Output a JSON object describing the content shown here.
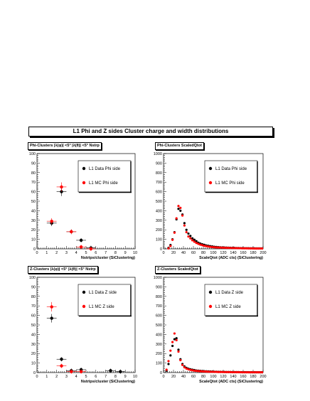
{
  "banner": "L1 Phi and Z sides Cluster charge and width distributions",
  "chart_data": [
    {
      "type": "scatter",
      "title": "Phi-Clusters |λ(φ)| <5° |λ(θ)| <5° Nstrp",
      "xlabel": "Nstrips/cluster (SiClustering)",
      "xlim": [
        0,
        10
      ],
      "ylim": [
        0,
        100
      ],
      "xticks": [
        "0",
        "1",
        "2",
        "3",
        "4",
        "5",
        "6",
        "7",
        "8",
        "9",
        "10"
      ],
      "yticks": [
        "0",
        "10",
        "20",
        "30",
        "40",
        "50",
        "60",
        "70",
        "80",
        "90",
        "100"
      ],
      "legend_position": "top-right",
      "series": [
        {
          "name": "L1 Data Phi side",
          "color": "#000000",
          "x": [
            1.5,
            2.5,
            3.5,
            4.5,
            5.5
          ],
          "y": [
            27,
            60,
            18,
            9,
            1
          ]
        },
        {
          "name": "L1 MC Phi side",
          "color": "#ff0000",
          "x": [
            1.5,
            2.5,
            3.5,
            4.5,
            5.5
          ],
          "y": [
            29,
            65,
            18,
            2,
            0
          ]
        }
      ]
    },
    {
      "type": "scatter",
      "title": "Phi-Clusters ScaledQtot",
      "xlabel": "ScaleQtot (ADC cts) (SiClustering)",
      "xlim": [
        0,
        200
      ],
      "ylim": [
        0,
        1000
      ],
      "xticks": [
        "0",
        "20",
        "40",
        "60",
        "80",
        "100",
        "120",
        "140",
        "160",
        "180",
        "200"
      ],
      "yticks": [
        "0",
        "100",
        "200",
        "300",
        "400",
        "500",
        "600",
        "700",
        "800",
        "900",
        "1000"
      ],
      "legend_position": "top-right",
      "series": [
        {
          "name": "L1 Data Phi side",
          "color": "#000000",
          "x": [
            10,
            14,
            18,
            22,
            26,
            30,
            34,
            38,
            42,
            46,
            50,
            54,
            58,
            62,
            66,
            70,
            74,
            78,
            82,
            86,
            90,
            94,
            98,
            102,
            106,
            110,
            114,
            118,
            122,
            126,
            130,
            134,
            138,
            142,
            146,
            150,
            154,
            158,
            162,
            166,
            170,
            174,
            178,
            182,
            186,
            190,
            194,
            198
          ],
          "y": [
            10,
            40,
            100,
            175,
            310,
            420,
            400,
            360,
            270,
            200,
            160,
            135,
            110,
            95,
            80,
            65,
            55,
            48,
            42,
            36,
            32,
            28,
            25,
            22,
            20,
            18,
            16,
            15,
            14,
            13,
            12,
            11,
            10,
            10,
            9,
            9,
            8,
            8,
            7,
            7,
            7,
            6,
            6,
            6,
            5,
            5,
            5,
            5
          ]
        },
        {
          "name": "L1 MC Phi side",
          "color": "#ff0000",
          "x": [
            10,
            14,
            18,
            22,
            26,
            30,
            34,
            38,
            42,
            46,
            50,
            54,
            58,
            62,
            66,
            70,
            74,
            78,
            82,
            86,
            90,
            94,
            98,
            102,
            106,
            110,
            114,
            118,
            122,
            126,
            130,
            134,
            138,
            142,
            146,
            150,
            154,
            158,
            162,
            166,
            170,
            174,
            178,
            182,
            186,
            190,
            194,
            198
          ],
          "y": [
            5,
            30,
            95,
            170,
            320,
            450,
            430,
            350,
            245,
            175,
            130,
            110,
            90,
            75,
            62,
            52,
            44,
            38,
            32,
            28,
            24,
            21,
            19,
            17,
            15,
            14,
            13,
            12,
            11,
            10,
            10,
            9,
            9,
            8,
            8,
            7,
            7,
            6,
            6,
            6,
            5,
            5,
            5,
            4,
            4,
            4,
            4,
            4
          ]
        }
      ]
    },
    {
      "type": "scatter",
      "title": "Z-Clusters |λ(φ)| <5° |λ(θ)| <5° Nstrp",
      "xlabel": "Nstrips/cluster (SiClustering)",
      "xlim": [
        0,
        10
      ],
      "ylim": [
        0,
        100
      ],
      "xticks": [
        "0",
        "1",
        "2",
        "3",
        "4",
        "5",
        "6",
        "7",
        "8",
        "9",
        "10"
      ],
      "yticks": [
        "0",
        "10",
        "20",
        "30",
        "40",
        "50",
        "60",
        "70",
        "80",
        "90",
        "100"
      ],
      "legend_position": "top-right",
      "series": [
        {
          "name": "L1 Data Z side",
          "color": "#000000",
          "x": [
            1.5,
            2.5,
            3.5,
            4.5,
            7.5,
            8.5
          ],
          "y": [
            57,
            14,
            2,
            3,
            2,
            1
          ]
        },
        {
          "name": "L1 MC Z side",
          "color": "#ff0000",
          "x": [
            1.5,
            2.5,
            3.5,
            4.5
          ],
          "y": [
            69,
            7,
            1,
            1
          ]
        }
      ]
    },
    {
      "type": "scatter",
      "title": "Z-Clusters ScaledQtot",
      "xlabel": "ScaleQtot (ADC cts) (SiClustering)",
      "xlim": [
        0,
        200
      ],
      "ylim": [
        0,
        1000
      ],
      "xticks": [
        "0",
        "20",
        "40",
        "60",
        "80",
        "100",
        "120",
        "140",
        "160",
        "180",
        "200"
      ],
      "yticks": [
        "0",
        "100",
        "200",
        "300",
        "400",
        "500",
        "600",
        "700",
        "800",
        "900",
        "1000"
      ],
      "legend_position": "top-right",
      "series": [
        {
          "name": "L1 Data Z side",
          "color": "#000000",
          "x": [
            6,
            10,
            14,
            18,
            22,
            26,
            30,
            34,
            38,
            42,
            46,
            50,
            54,
            58,
            62,
            66,
            70,
            74,
            78,
            82,
            86,
            90,
            94,
            98,
            102,
            106,
            110,
            114,
            118,
            122,
            126,
            130,
            134,
            138,
            142,
            146,
            150,
            154,
            158,
            162,
            166,
            170,
            174,
            178,
            182,
            186,
            190,
            194,
            198
          ],
          "y": [
            20,
            90,
            180,
            280,
            350,
            360,
            240,
            140,
            90,
            65,
            50,
            40,
            35,
            30,
            26,
            22,
            20,
            18,
            16,
            14,
            13,
            12,
            11,
            10,
            9,
            9,
            8,
            8,
            7,
            7,
            6,
            6,
            6,
            5,
            5,
            5,
            5,
            4,
            4,
            4,
            4,
            4,
            3,
            3,
            3,
            3,
            3,
            3,
            3
          ]
        },
        {
          "name": "L1 MC Z side",
          "color": "#ff0000",
          "x": [
            6,
            10,
            14,
            18,
            22,
            26,
            30,
            34,
            38,
            42,
            46,
            50,
            54,
            58,
            62,
            66,
            70,
            74,
            78,
            82,
            86,
            90,
            94,
            98,
            102,
            106,
            110,
            114,
            118,
            122,
            126,
            130,
            134,
            138,
            142,
            146,
            150,
            154,
            158,
            162,
            166,
            170,
            174,
            178,
            182,
            186,
            190,
            194,
            198
          ],
          "y": [
            30,
            120,
            230,
            320,
            410,
            340,
            220,
            130,
            80,
            55,
            42,
            34,
            28,
            24,
            20,
            18,
            16,
            14,
            12,
            11,
            10,
            9,
            8,
            8,
            7,
            7,
            6,
            6,
            6,
            5,
            5,
            5,
            5,
            4,
            4,
            4,
            4,
            4,
            3,
            3,
            3,
            3,
            3,
            3,
            3,
            3,
            3,
            3,
            3
          ]
        }
      ]
    }
  ]
}
